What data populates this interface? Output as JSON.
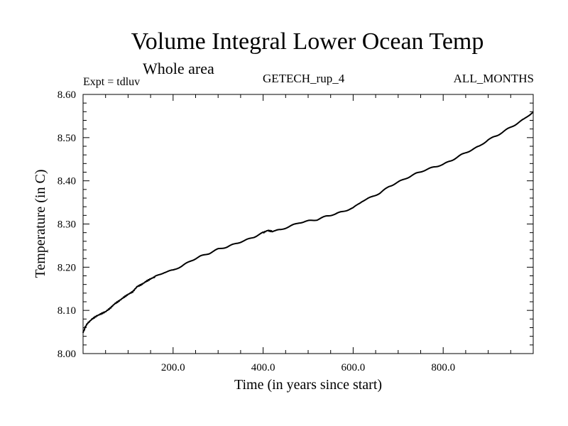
{
  "header": {
    "title": "Volume Integral Lower Ocean Temp",
    "subtitle": "Whole area",
    "experiment": "Expt = tdluv",
    "run_name": "GETECH_rup_4",
    "months": "ALL_MONTHS"
  },
  "chart_data": {
    "type": "line",
    "title": "Volume Integral Lower Ocean Temp",
    "subtitle": "Whole area",
    "xlabel": "Time (in years since start)",
    "ylabel": "Temperature (in C)",
    "xlim": [
      0,
      1000
    ],
    "ylim": [
      8.0,
      8.6
    ],
    "x_ticks": [
      200,
      400,
      600,
      800
    ],
    "x_tick_labels": [
      "200.0",
      "400.0",
      "600.0",
      "800.0"
    ],
    "y_ticks": [
      8.0,
      8.1,
      8.2,
      8.3,
      8.4,
      8.5,
      8.6
    ],
    "y_tick_labels": [
      "8.00",
      "8.10",
      "8.20",
      "8.30",
      "8.40",
      "8.50",
      "8.60"
    ],
    "grid": false,
    "series": [
      {
        "color": "#000000",
        "x": [
          0,
          5,
          10,
          20,
          30,
          40,
          50,
          60,
          70,
          80,
          90,
          100,
          110,
          120,
          130,
          140,
          150,
          160,
          180,
          200,
          220,
          240,
          260,
          280,
          300,
          320,
          340,
          360,
          380,
          400,
          410,
          420,
          440,
          460,
          480,
          500,
          520,
          540,
          560,
          580,
          600,
          620,
          640,
          660,
          680,
          700,
          720,
          740,
          760,
          780,
          800,
          820,
          840,
          860,
          880,
          900,
          920,
          940,
          960,
          980,
          1000
        ],
        "y": [
          8.048,
          8.062,
          8.07,
          8.08,
          8.087,
          8.092,
          8.097,
          8.105,
          8.115,
          8.122,
          8.13,
          8.137,
          8.143,
          8.155,
          8.16,
          8.167,
          8.173,
          8.178,
          8.188,
          8.193,
          8.203,
          8.215,
          8.225,
          8.232,
          8.242,
          8.247,
          8.255,
          8.262,
          8.27,
          8.28,
          8.285,
          8.283,
          8.287,
          8.295,
          8.303,
          8.307,
          8.31,
          8.318,
          8.323,
          8.33,
          8.337,
          8.353,
          8.362,
          8.372,
          8.387,
          8.397,
          8.407,
          8.417,
          8.425,
          8.432,
          8.438,
          8.448,
          8.46,
          8.47,
          8.48,
          8.495,
          8.505,
          8.518,
          8.53,
          8.543,
          8.56
        ]
      }
    ]
  }
}
